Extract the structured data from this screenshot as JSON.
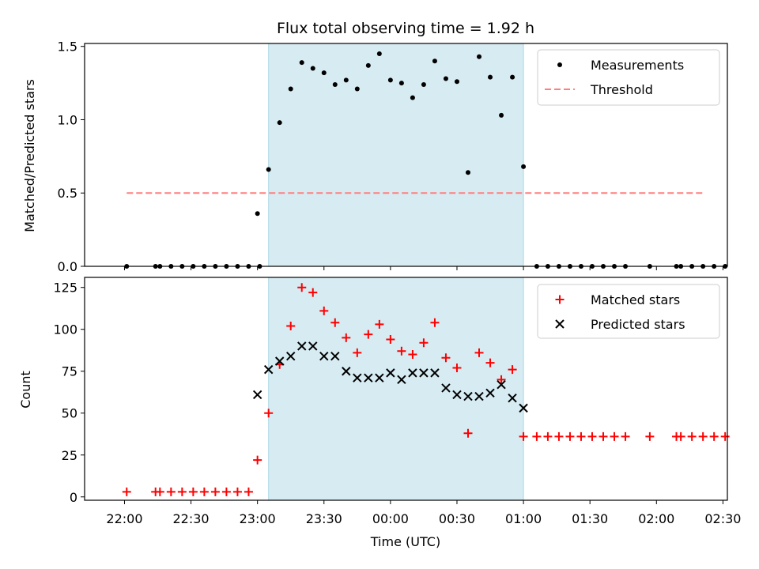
{
  "chart_data": [
    {
      "type": "scatter",
      "title": "Flux total observing time = 1.92 h",
      "ylabel": "Matched/Predicted stars",
      "ylim": [
        0,
        1.52
      ],
      "yticks": [
        0.0,
        0.5,
        1.0,
        1.5
      ],
      "ytick_labels": [
        "0.0",
        "0.5",
        "1.0",
        "1.5"
      ],
      "x_unit": "minutes after 22:00 UTC",
      "xlim": [
        -18,
        272
      ],
      "shaded_interval": [
        65,
        180
      ],
      "shade_color": "#add8e6",
      "legend_position": "upper right",
      "series": [
        {
          "name": "Measurements",
          "marker": "dot",
          "color": "#000000",
          "x": [
            1,
            14,
            16,
            21,
            26,
            31,
            36,
            41,
            46,
            51,
            56,
            61,
            60,
            65,
            70,
            75,
            80,
            85,
            90,
            95,
            100,
            105,
            110,
            115,
            120,
            125,
            130,
            135,
            140,
            145,
            150,
            155,
            160,
            165,
            170,
            175,
            180,
            186,
            191,
            196,
            201,
            206,
            211,
            216,
            221,
            226,
            237,
            249,
            251,
            256,
            261,
            266,
            271
          ],
          "y": [
            0,
            0,
            0,
            0,
            0,
            0,
            0,
            0,
            0,
            0,
            0,
            0,
            0.36,
            0.66,
            0.98,
            1.21,
            1.39,
            1.35,
            1.32,
            1.24,
            1.27,
            1.21,
            1.37,
            1.45,
            1.27,
            1.25,
            1.15,
            1.24,
            1.4,
            1.28,
            1.26,
            0.64,
            1.43,
            1.29,
            1.03,
            1.29,
            0.68,
            0,
            0,
            0,
            0,
            0,
            0,
            0,
            0,
            0,
            0,
            0,
            0,
            0,
            0,
            0,
            0
          ]
        },
        {
          "name": "Threshold",
          "line_style": "dashed",
          "color": "#ff7f7f",
          "x": [
            1,
            261
          ],
          "y": [
            0.5,
            0.5
          ]
        }
      ]
    },
    {
      "type": "scatter",
      "ylabel": "Count",
      "xlabel": "Time (UTC)",
      "ylim": [
        -2,
        131
      ],
      "yticks": [
        0,
        25,
        50,
        75,
        100,
        125
      ],
      "ytick_labels": [
        "0",
        "25",
        "50",
        "75",
        "100",
        "125"
      ],
      "x_unit": "minutes after 22:00 UTC",
      "xlim": [
        -18,
        272
      ],
      "xticks": [
        0,
        30,
        60,
        90,
        120,
        150,
        180,
        210,
        240,
        270
      ],
      "xtick_labels": [
        "22:00",
        "22:30",
        "23:00",
        "23:30",
        "00:00",
        "00:30",
        "01:00",
        "01:30",
        "02:00",
        "02:30"
      ],
      "shaded_interval": [
        65,
        180
      ],
      "shade_color": "#add8e6",
      "legend_position": "upper right",
      "series": [
        {
          "name": "Matched stars",
          "marker": "plus",
          "color": "#ff0000",
          "x": [
            1,
            14,
            16,
            21,
            26,
            31,
            36,
            41,
            46,
            51,
            56,
            60,
            65,
            70,
            75,
            80,
            85,
            90,
            95,
            100,
            105,
            110,
            115,
            120,
            125,
            130,
            135,
            140,
            145,
            150,
            155,
            160,
            165,
            170,
            175,
            180,
            186,
            191,
            196,
            201,
            206,
            211,
            216,
            221,
            226,
            237,
            249,
            251,
            256,
            261,
            266,
            271
          ],
          "y": [
            3,
            3,
            3,
            3,
            3,
            3,
            3,
            3,
            3,
            3,
            3,
            22,
            50,
            79,
            102,
            125,
            122,
            111,
            104,
            95,
            86,
            97,
            103,
            94,
            87,
            85,
            92,
            104,
            83,
            77,
            38,
            86,
            80,
            70,
            76,
            36,
            36,
            36,
            36,
            36,
            36,
            36,
            36,
            36,
            36,
            36,
            36,
            36,
            36,
            36,
            36,
            36
          ]
        },
        {
          "name": "Predicted stars",
          "marker": "x",
          "color": "#000000",
          "x": [
            60,
            65,
            70,
            75,
            80,
            85,
            90,
            95,
            100,
            105,
            110,
            115,
            120,
            125,
            130,
            135,
            140,
            145,
            150,
            155,
            160,
            165,
            170,
            175,
            180
          ],
          "y": [
            61,
            76,
            81,
            84,
            90,
            90,
            84,
            84,
            75,
            71,
            71,
            71,
            74,
            70,
            74,
            74,
            74,
            65,
            61,
            60,
            60,
            62,
            67,
            59,
            53
          ]
        }
      ]
    }
  ]
}
